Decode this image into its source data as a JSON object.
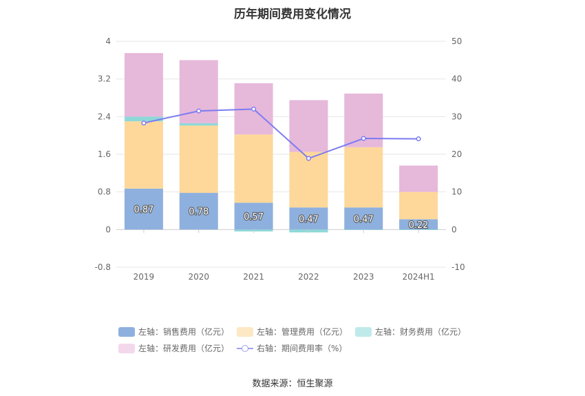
{
  "chart_data": {
    "type": "bar",
    "title": "历年期间费用变化情况",
    "categories": [
      "2019",
      "2020",
      "2021",
      "2022",
      "2023",
      "2024H1"
    ],
    "left_axis": {
      "min": -0.8,
      "max": 4,
      "ticks": [
        "-0.8",
        "0",
        "0.8",
        "1.6",
        "2.4",
        "3.2",
        "4"
      ]
    },
    "right_axis": {
      "min": -10,
      "max": 50,
      "ticks": [
        "-10",
        "0",
        "10",
        "20",
        "30",
        "40",
        "50"
      ]
    },
    "series": [
      {
        "name": "左轴：销售费用（亿元）",
        "axis": "left",
        "color": "#8eb0de",
        "values": [
          0.87,
          0.78,
          0.57,
          0.47,
          0.47,
          0.22
        ],
        "labels": [
          "0.87",
          "0.78",
          "0.57",
          "0.47",
          "0.47",
          "0.22"
        ]
      },
      {
        "name": "左轴：管理费用（亿元）",
        "axis": "left",
        "color": "#fdd89a",
        "values": [
          1.43,
          1.43,
          1.45,
          1.18,
          1.28,
          0.58
        ]
      },
      {
        "name": "左轴：财务费用（亿元）",
        "axis": "left",
        "color": "#8ed8d8",
        "values": [
          0.1,
          0.05,
          -0.04,
          -0.06,
          -0.01,
          -0.01
        ]
      },
      {
        "name": "左轴：研发费用（亿元）",
        "axis": "left",
        "color": "#e6b8da",
        "values": [
          1.35,
          1.34,
          1.09,
          1.1,
          1.14,
          0.56
        ]
      },
      {
        "name": "右轴：期间费用率（%）",
        "axis": "right",
        "type": "line",
        "color": "#7b7bf2",
        "values": [
          28.3,
          31.5,
          32.0,
          18.9,
          24.2,
          24.1
        ]
      }
    ],
    "source": "数据来源：恒生聚源"
  }
}
